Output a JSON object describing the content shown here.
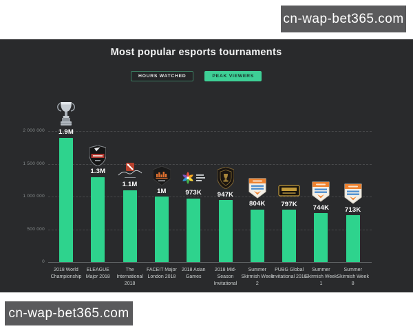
{
  "watermarks": {
    "top": "cn-wap-bet365.com",
    "bottom": "cn-wap-bet365.com"
  },
  "chart": {
    "title": "Most popular esports tournaments",
    "toggles": [
      {
        "label": "HOURS WATCHED",
        "active": false
      },
      {
        "label": "PEAK VIEWERS",
        "active": true
      }
    ]
  },
  "chart_data": {
    "type": "bar",
    "title": "Most popular esports tournaments",
    "active_series": "PEAK VIEWERS",
    "categories": [
      "2018 World Championship",
      "ELEAGUE Major 2018",
      "The International 2018",
      "FACEIT Major London 2018",
      "2018 Asian Games",
      "2018 Mid-Season Invitational",
      "Summer Skirmish Week 2",
      "PUBG Global Invitational 2018",
      "Summer Skirmish Week 1",
      "Summer Skirmish Week 8"
    ],
    "values": [
      1900000,
      1300000,
      1100000,
      1000000,
      973000,
      947000,
      804000,
      797000,
      744000,
      713000
    ],
    "value_labels": [
      "1.9M",
      "1.3M",
      "1.1M",
      "1M",
      "973K",
      "947K",
      "804K",
      "797K",
      "744K",
      "713K"
    ],
    "icons": [
      "worlds-trophy-icon",
      "eleague-major-shield-icon",
      "dota-international-icon",
      "faceit-major-icon",
      "asian-games-2018-icon",
      "msi-2018-shield-icon",
      "summer-skirmish-badge-icon",
      "pubg-global-invitational-icon",
      "summer-skirmish-badge-icon",
      "summer-skirmish-badge-icon"
    ],
    "xlabel": "",
    "ylabel": "",
    "ylim": [
      0,
      2000000
    ],
    "yticks": [
      0,
      500000,
      1000000,
      1500000,
      2000000
    ],
    "ytick_labels": [
      "0",
      "500 000",
      "1 000 000",
      "1 500 000",
      "2 000 000"
    ],
    "grid": "horizontal-dashed",
    "legend_position": "top-buttons",
    "bar_color": "#2ed38d"
  },
  "colors": {
    "panel_bg": "#292a2c",
    "accent_green": "#3ecf96",
    "watermark_bg": "#5a5a5c",
    "value_label": "#ffffff",
    "axis_label": "#868b8c",
    "category_label": "#ccd0d0"
  }
}
